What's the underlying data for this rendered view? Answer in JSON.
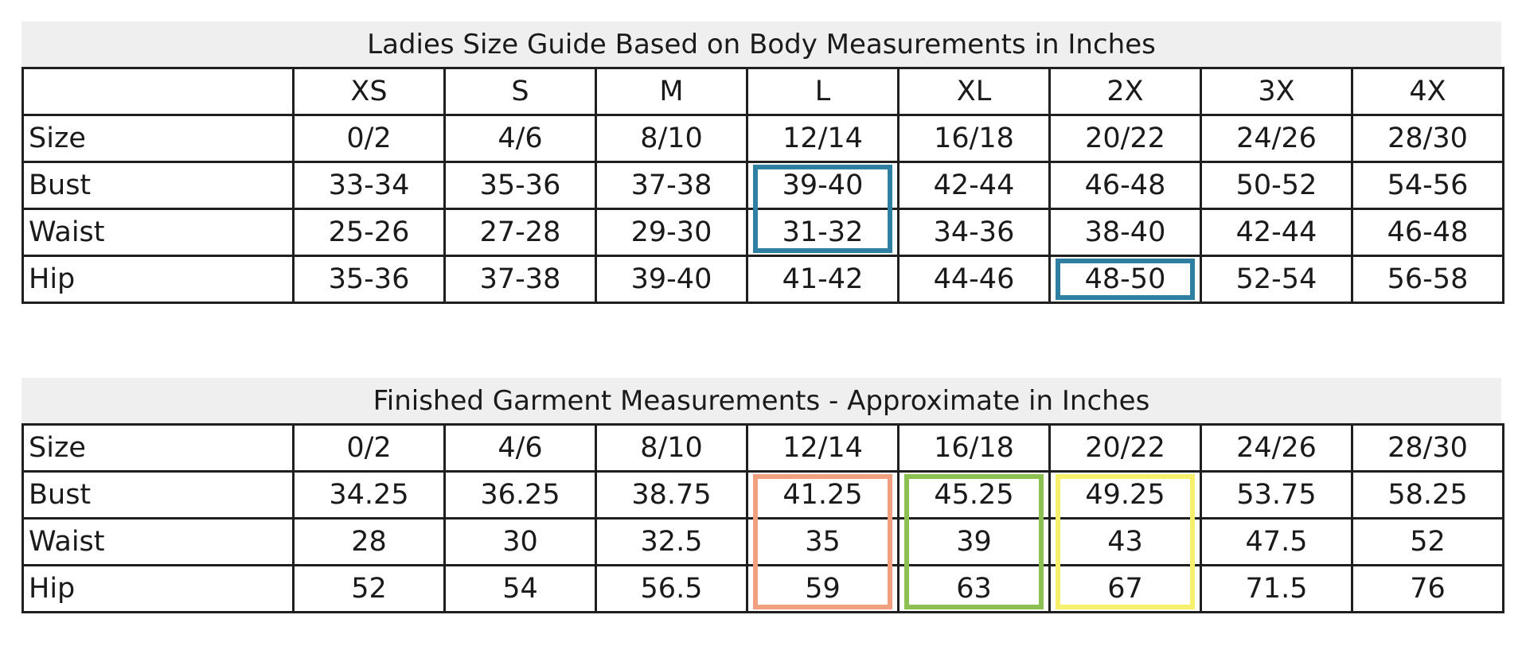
{
  "body_guide": {
    "title": "Ladies Size Guide Based on Body Measurements in Inches",
    "letter_sizes": [
      "XS",
      "S",
      "M",
      "L",
      "XL",
      "2X",
      "3X",
      "4X"
    ],
    "rows": [
      {
        "label": "Size",
        "values": [
          "0/2",
          "4/6",
          "8/10",
          "12/14",
          "16/18",
          "20/22",
          "24/26",
          "28/30"
        ]
      },
      {
        "label": "Bust",
        "values": [
          "33-34",
          "35-36",
          "37-38",
          "39-40",
          "42-44",
          "46-48",
          "50-52",
          "54-56"
        ]
      },
      {
        "label": "Waist",
        "values": [
          "25-26",
          "27-28",
          "29-30",
          "31-32",
          "34-36",
          "38-40",
          "42-44",
          "46-48"
        ]
      },
      {
        "label": "Hip",
        "values": [
          "35-36",
          "37-38",
          "39-40",
          "41-42",
          "44-46",
          "48-50",
          "52-54",
          "56-58"
        ]
      }
    ],
    "highlights": [
      {
        "column": "L",
        "rows": [
          "Bust",
          "Waist"
        ],
        "color": "#2f7fa3"
      },
      {
        "column": "2X",
        "rows": [
          "Hip"
        ],
        "color": "#2f7fa3"
      }
    ]
  },
  "garment": {
    "title": "Finished Garment Measurements - Approximate in Inches",
    "rows": [
      {
        "label": "Size",
        "values": [
          "0/2",
          "4/6",
          "8/10",
          "12/14",
          "16/18",
          "20/22",
          "24/26",
          "28/30"
        ]
      },
      {
        "label": "Bust",
        "values": [
          "34.25",
          "36.25",
          "38.75",
          "41.25",
          "45.25",
          "49.25",
          "53.75",
          "58.25"
        ]
      },
      {
        "label": "Waist",
        "values": [
          "28",
          "30",
          "32.5",
          "35",
          "39",
          "43",
          "47.5",
          "52"
        ]
      },
      {
        "label": "Hip",
        "values": [
          "52",
          "54",
          "56.5",
          "59",
          "63",
          "67",
          "71.5",
          "76"
        ]
      }
    ],
    "highlights": [
      {
        "column": "12/14",
        "rows": [
          "Bust",
          "Waist",
          "Hip"
        ],
        "color": "#f0a07e"
      },
      {
        "column": "16/18",
        "rows": [
          "Bust",
          "Waist",
          "Hip"
        ],
        "color": "#8cc152"
      },
      {
        "column": "20/22",
        "rows": [
          "Bust",
          "Waist",
          "Hip"
        ],
        "color": "#f7f06a"
      }
    ]
  }
}
